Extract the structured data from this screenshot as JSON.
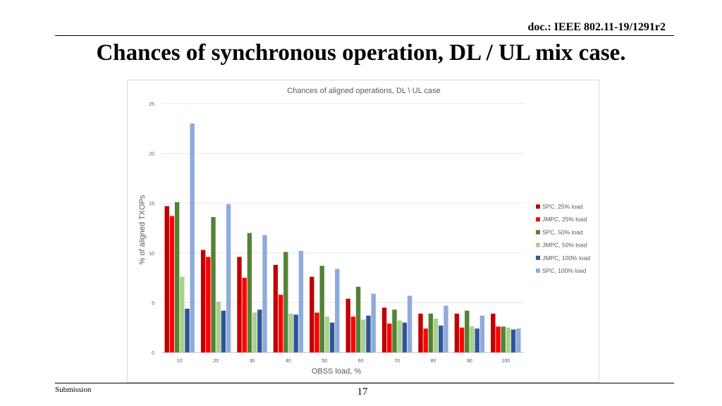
{
  "header": {
    "doc_id": "doc.: IEEE 802.11-19/1291r2",
    "title": "Chances of synchronous operation, DL / UL mix case."
  },
  "footer": {
    "submission": "Submission",
    "page_number": "17"
  },
  "chart_data": {
    "type": "bar",
    "title": "Chances of aligned operations, DL \\ UL case",
    "xlabel": "OBSS load, %",
    "ylabel": "% of aligned TXOPs",
    "ylim": [
      0,
      25
    ],
    "yticks": [
      0,
      5,
      10,
      15,
      20,
      25
    ],
    "grid": true,
    "legend_position": "right",
    "categories": [
      "10",
      "20",
      "30",
      "40",
      "50",
      "60",
      "70",
      "80",
      "90",
      "100"
    ],
    "series": [
      {
        "name": "SPC, 25% load",
        "color": "#c00000",
        "values": [
          14.7,
          10.3,
          9.6,
          8.8,
          7.6,
          5.4,
          4.5,
          3.9,
          3.9,
          3.9
        ]
      },
      {
        "name": "JMPC, 25% load",
        "color": "#ff0000",
        "values": [
          13.7,
          9.6,
          7.5,
          5.8,
          4.0,
          3.6,
          2.9,
          2.4,
          2.5,
          2.6
        ]
      },
      {
        "name": "SPC, 50% load",
        "color": "#548235",
        "values": [
          15.1,
          13.6,
          12.0,
          10.1,
          8.7,
          6.6,
          4.3,
          3.9,
          4.2,
          2.6
        ]
      },
      {
        "name": "JMPC, 50% load",
        "color": "#a9d18e",
        "values": [
          7.6,
          5.1,
          4.0,
          3.9,
          3.6,
          3.3,
          3.2,
          3.4,
          2.6,
          2.5
        ]
      },
      {
        "name": "JMPC, 100% load",
        "color": "#2f5597",
        "values": [
          4.4,
          4.2,
          4.3,
          3.8,
          3.0,
          3.7,
          3.0,
          2.7,
          2.4,
          2.3
        ]
      },
      {
        "name": "SPC, 100% load",
        "color": "#8faadc",
        "values": [
          23.0,
          14.9,
          11.8,
          10.2,
          8.4,
          5.9,
          5.7,
          4.7,
          3.7,
          2.4
        ]
      }
    ]
  }
}
